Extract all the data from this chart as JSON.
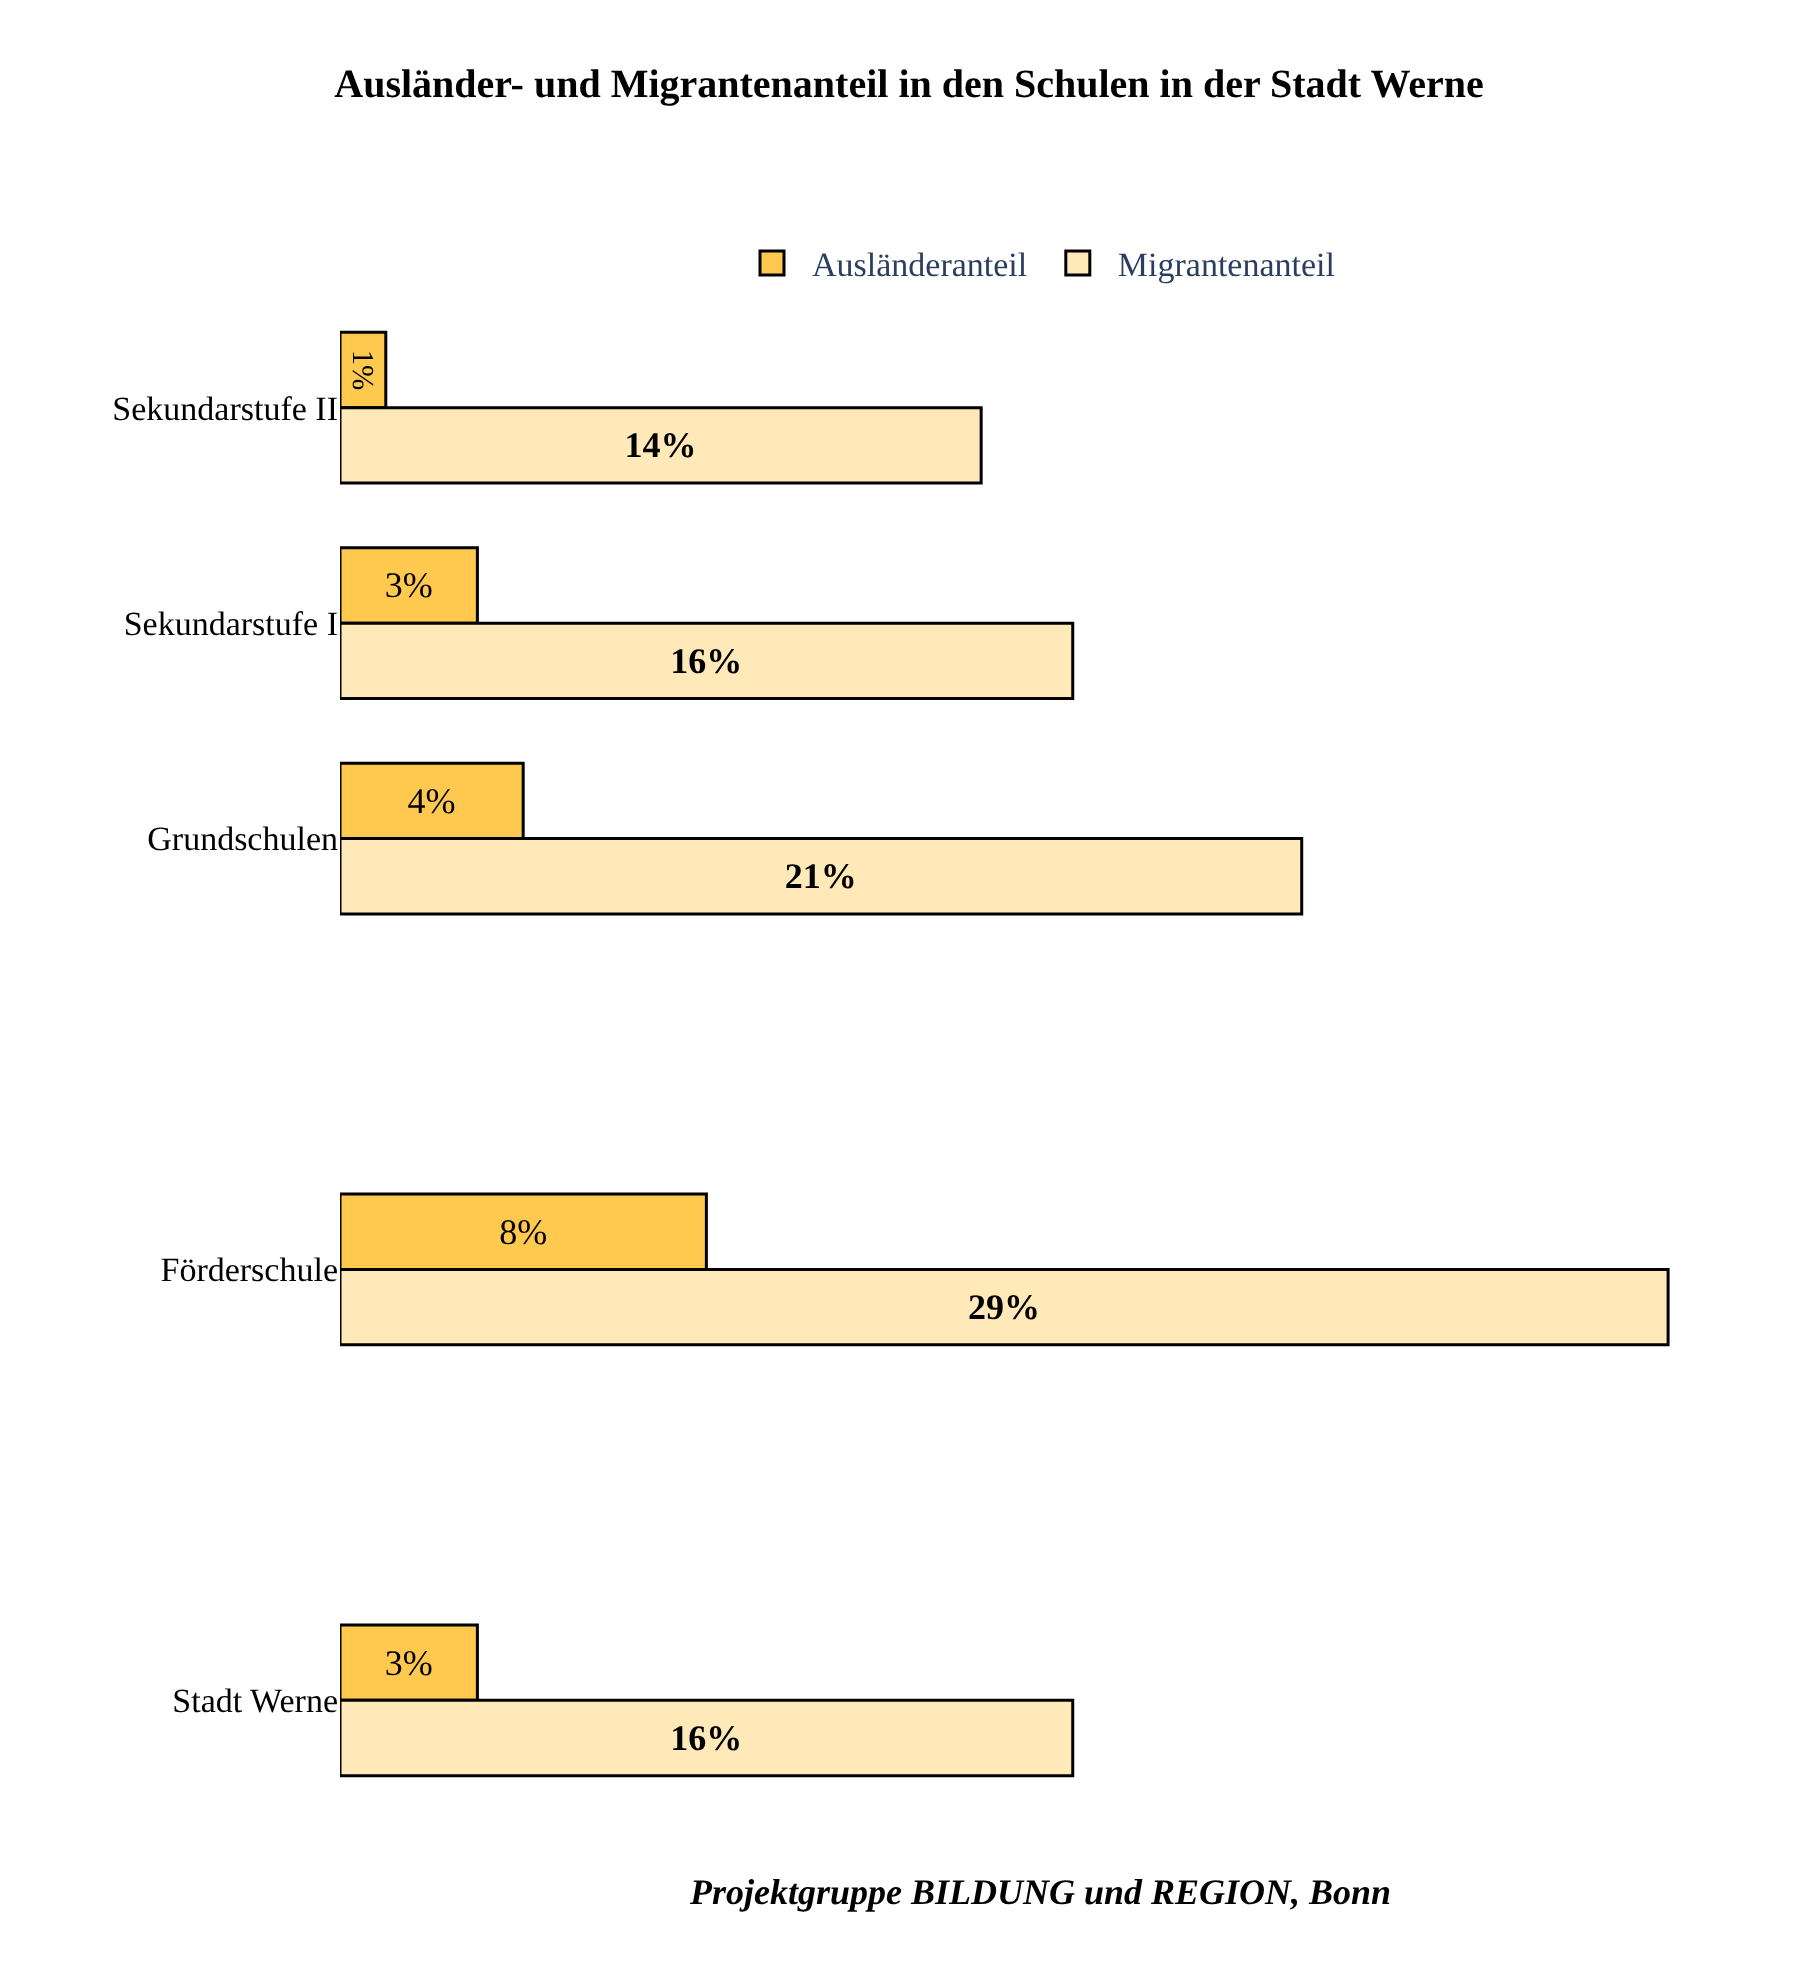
{
  "chart_data": {
    "type": "bar",
    "orientation": "horizontal",
    "title": "Ausländer- und Migrantenanteil in den Schulen in der Stadt Werne",
    "categories": [
      "Sekundarstufe II",
      "Sekundarstufe I",
      "Grundschulen",
      null,
      "Förderschule",
      null,
      "Stadt Werne"
    ],
    "series": [
      {
        "name": "Ausländeranteil",
        "color": "#ffc94f",
        "values": [
          1,
          3,
          4,
          null,
          8,
          null,
          3
        ],
        "value_labels": [
          "1%",
          "3%",
          "4%",
          null,
          "8%",
          null,
          "3%"
        ]
      },
      {
        "name": "Migrantenanteil",
        "color": "#ffe9b8",
        "values": [
          14,
          16,
          21,
          null,
          29,
          null,
          16
        ],
        "value_labels": [
          "14%",
          "16%",
          "21%",
          null,
          "29%",
          null,
          "16%"
        ]
      }
    ],
    "legend": "top",
    "annotations": [
      "Projektgruppe BILDUNG und REGION, Bonn"
    ]
  }
}
